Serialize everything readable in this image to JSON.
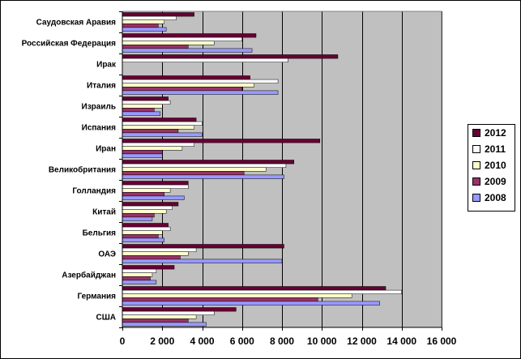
{
  "chart_data": {
    "type": "bar",
    "orientation": "horizontal",
    "categories": [
      "Саудовская Аравия",
      "Российская Федерация",
      "Ирак",
      "Италия",
      "Израиль",
      "Испания",
      "Иран",
      "Великобритания",
      "Голландия",
      "Китай",
      "Бельгия",
      "ОАЭ",
      "Азербайджан",
      "Германия",
      "США"
    ],
    "series": [
      {
        "name": "2012",
        "color": "#660033",
        "values": [
          3600,
          6700,
          10800,
          6400,
          2300,
          3700,
          9900,
          8600,
          3300,
          2800,
          2300,
          8100,
          2600,
          13200,
          5700
        ]
      },
      {
        "name": "2011",
        "color": "#ffffff",
        "values": [
          2700,
          6000,
          8300,
          7800,
          2400,
          4000,
          3600,
          8200,
          3300,
          2500,
          2400,
          3700,
          1700,
          14000,
          4600
        ]
      },
      {
        "name": "2010",
        "color": "#ffffcc",
        "values": [
          2100,
          4600,
          0,
          6600,
          2000,
          3600,
          3000,
          7200,
          2400,
          2200,
          2000,
          3300,
          1500,
          11500,
          3700
        ]
      },
      {
        "name": "2009",
        "color": "#993366",
        "values": [
          1800,
          3300,
          0,
          6000,
          1600,
          2800,
          2000,
          6100,
          2100,
          1600,
          1800,
          2900,
          1400,
          9800,
          3300
        ]
      },
      {
        "name": "2008",
        "color": "#9999ff",
        "values": [
          2200,
          6500,
          0,
          7800,
          1900,
          4000,
          2000,
          8100,
          3100,
          1500,
          2100,
          8000,
          1700,
          12900,
          4200
        ]
      }
    ],
    "xlim": [
      0,
      16000
    ],
    "xticks": [
      0,
      2000,
      4000,
      6000,
      8000,
      10000,
      12000,
      14000,
      16000
    ],
    "xtick_labels": [
      "0",
      "2 000",
      "4 000",
      "6 000",
      "8 000",
      "10 000",
      "12 000",
      "14 000",
      "16 000"
    ],
    "legend_order": [
      "2012",
      "2011",
      "2010",
      "2009",
      "2008"
    ],
    "legend_position": "right",
    "grid": true,
    "plot_background": "#c0c0c0",
    "title": "",
    "xlabel": "",
    "ylabel": ""
  }
}
